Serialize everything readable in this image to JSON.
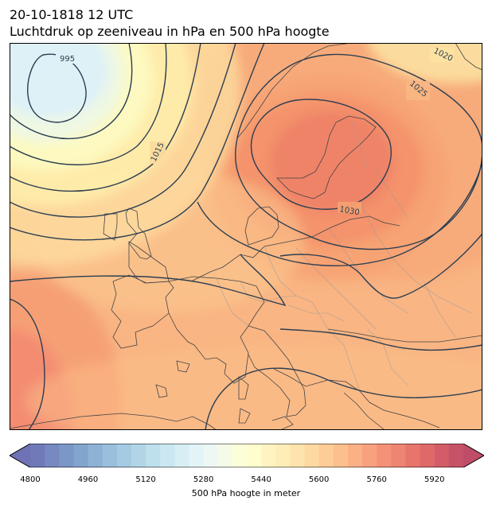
{
  "title": {
    "line1": "20-10-1818 12 UTC",
    "line2": "Luchtdruk op zeeniveau in hPa en 500 hPa hoogte"
  },
  "map": {
    "region": "Europe and North Atlantic",
    "pressure_contour_labels": [
      "995",
      "1015",
      "1020",
      "1025",
      "1030"
    ],
    "colors": {
      "contour_line": "#2c3e50",
      "coastline": "#444444",
      "border": "#999999"
    }
  },
  "colorbar": {
    "label": "500 hPa hoogte in meter",
    "min": 4800,
    "max": 6000,
    "step": 40,
    "ticks": [
      "4800",
      "4960",
      "5120",
      "5280",
      "5440",
      "5600",
      "5760",
      "5920"
    ],
    "extend": "both",
    "colormap": "RdYlBu_r"
  }
}
